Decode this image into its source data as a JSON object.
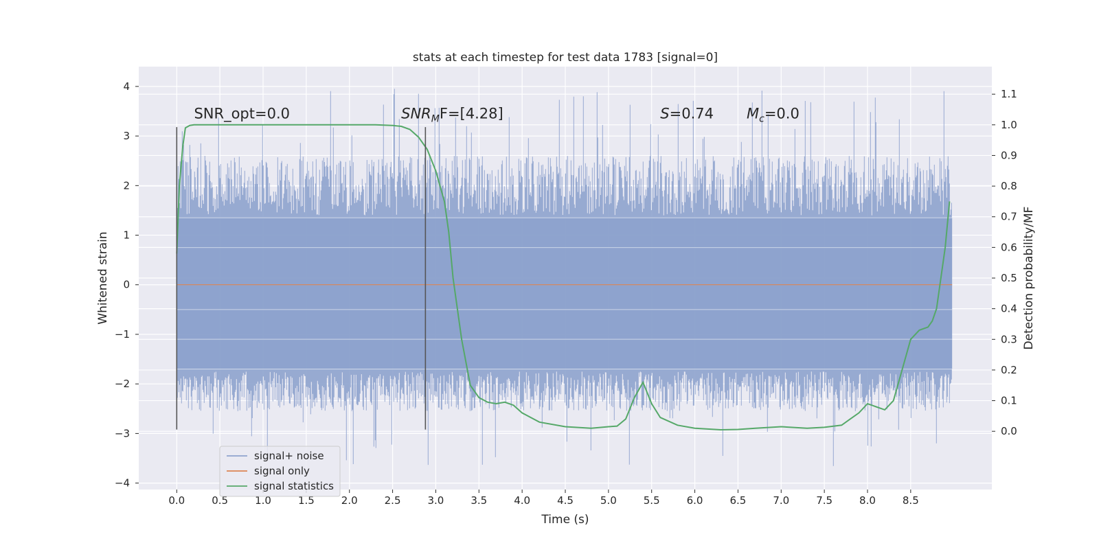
{
  "chart_data": {
    "type": "line",
    "title": "stats at each timestep for test data 1783 [signal=0]",
    "xlabel": "Time (s)",
    "ylabel": "Whitened strain",
    "ylabel_right": "Detection probability/MF",
    "xlim": [
      -0.44,
      9.44
    ],
    "ylim": [
      -4.13,
      4.4
    ],
    "ylim_right": [
      -0.19,
      1.19
    ],
    "x_ticks": [
      0.0,
      0.5,
      1.0,
      1.5,
      2.0,
      2.5,
      3.0,
      3.5,
      4.0,
      4.5,
      5.0,
      5.5,
      6.0,
      6.5,
      7.0,
      7.5,
      8.0,
      8.5
    ],
    "x_tick_labels": [
      "0.0",
      "0.5",
      "1.0",
      "1.5",
      "2.0",
      "2.5",
      "3.0",
      "3.5",
      "4.0",
      "4.5",
      "5.0",
      "5.5",
      "6.0",
      "6.5",
      "7.0",
      "7.5",
      "8.0",
      "8.5"
    ],
    "y_ticks": [
      4,
      3,
      2,
      1,
      0,
      -1,
      -2,
      -3,
      -4
    ],
    "y_tick_labels": [
      "4",
      "3",
      "2",
      "1",
      "0",
      "−1",
      "−2",
      "−3",
      "−4"
    ],
    "y_right_ticks": [
      1.1,
      1.0,
      0.9,
      0.8,
      0.7,
      0.6,
      0.5,
      0.4,
      0.3,
      0.2,
      0.1,
      0.0
    ],
    "y_right_tick_labels": [
      "1.1",
      "1.0",
      "0.9",
      "0.8",
      "0.7",
      "0.6",
      "0.5",
      "0.4",
      "0.3",
      "0.2",
      "0.1",
      "0.0"
    ],
    "grid": true,
    "legend_position": "lower-left",
    "annotations": {
      "snr_opt": {
        "text": "SNR_opt=0.0",
        "x": 0.2,
        "y": 3.3
      },
      "snr_mf": {
        "base": "SNR",
        "sub": "M",
        "rest": "F=[4.28]",
        "x": 2.6,
        "y": 3.3
      },
      "s_stat": {
        "base": "S",
        "rest": "=0.74",
        "x": 5.6,
        "y": 3.3
      },
      "mc": {
        "base": "M",
        "sub": "c",
        "rest": "=0.0",
        "x": 6.6,
        "y": 3.3
      }
    },
    "vlines": [
      {
        "x": 0.0,
        "ymin": -2.92,
        "ymax": 3.18
      },
      {
        "x": 2.88,
        "ymin": -2.92,
        "ymax": 3.18
      }
    ],
    "noise_band": {
      "x_start": 0.0,
      "x_end": 8.98,
      "core_low": -1.7,
      "core_high": 1.35,
      "peak_max": 4.02,
      "peak_min": -3.73
    },
    "series": [
      {
        "name": "signal+ noise",
        "color": "#8ea3cd",
        "axis": "left",
        "x": [
          0.0,
          8.98
        ],
        "y": [
          0.0,
          0.0
        ]
      },
      {
        "name": "signal only",
        "color": "#dd8452",
        "axis": "left",
        "x": [
          0.0,
          8.98
        ],
        "y": [
          0.0,
          0.0
        ]
      },
      {
        "name": "signal statistics",
        "color": "#55a868",
        "axis": "right",
        "x": [
          0.0,
          0.03,
          0.07,
          0.1,
          0.15,
          0.2,
          0.3,
          0.5,
          1.0,
          1.5,
          2.0,
          2.3,
          2.5,
          2.6,
          2.7,
          2.8,
          2.9,
          3.0,
          3.1,
          3.15,
          3.2,
          3.3,
          3.4,
          3.5,
          3.6,
          3.7,
          3.8,
          3.9,
          4.0,
          4.2,
          4.5,
          4.8,
          5.0,
          5.1,
          5.2,
          5.3,
          5.4,
          5.5,
          5.6,
          5.8,
          6.0,
          6.3,
          6.5,
          6.7,
          7.0,
          7.3,
          7.5,
          7.7,
          7.8,
          7.9,
          8.0,
          8.1,
          8.2,
          8.3,
          8.4,
          8.5,
          8.6,
          8.7,
          8.75,
          8.8,
          8.85,
          8.9,
          8.95
        ],
        "y": [
          0.58,
          0.8,
          0.93,
          0.99,
          0.998,
          1.0,
          1.0,
          1.0,
          1.0,
          1.0,
          1.0,
          1.0,
          0.998,
          0.995,
          0.985,
          0.96,
          0.92,
          0.85,
          0.75,
          0.65,
          0.5,
          0.3,
          0.15,
          0.11,
          0.095,
          0.09,
          0.095,
          0.085,
          0.06,
          0.03,
          0.015,
          0.01,
          0.015,
          0.017,
          0.04,
          0.11,
          0.16,
          0.09,
          0.045,
          0.02,
          0.01,
          0.005,
          0.006,
          0.01,
          0.015,
          0.01,
          0.013,
          0.02,
          0.04,
          0.06,
          0.09,
          0.08,
          0.07,
          0.1,
          0.2,
          0.3,
          0.33,
          0.34,
          0.36,
          0.4,
          0.5,
          0.6,
          0.75
        ]
      }
    ]
  }
}
